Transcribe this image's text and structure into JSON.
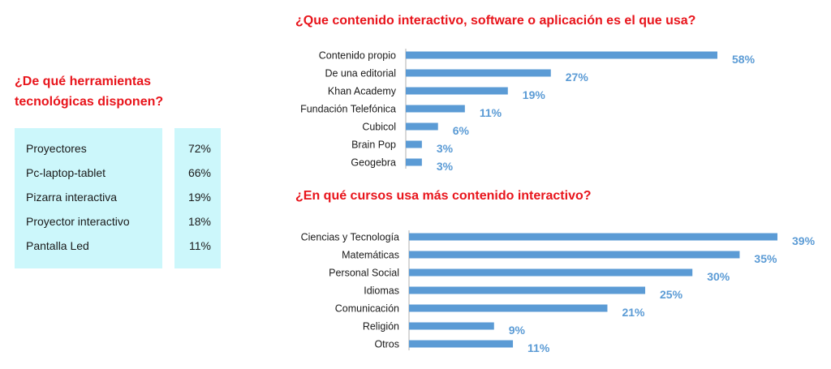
{
  "tools": {
    "title": "¿De qué herramientas tecnológicas disponen?",
    "items": [
      {
        "name": "Proyectores",
        "pct": "72%"
      },
      {
        "name": "Pc-laptop-tablet",
        "pct": "66%"
      },
      {
        "name": "Pizarra interactiva",
        "pct": "19%"
      },
      {
        "name": "Proyector interactivo",
        "pct": "18%"
      },
      {
        "name": "Pantalla Led",
        "pct": "11%"
      }
    ]
  },
  "colors": {
    "bar": "#5b9bd5",
    "title": "#e8141b",
    "table_bg": "#ccf7fb",
    "value_label": "#5b9bd5"
  },
  "chart_data": [
    {
      "type": "bar",
      "orientation": "horizontal",
      "title": "¿Que contenido interactivo, software o aplicación es el que usa?",
      "categories": [
        "Contenido propio",
        "De una editorial",
        "Khan Academy",
        "Fundación Telefónica",
        "Cubicol",
        "Brain Pop",
        "Geogebra"
      ],
      "values": [
        58,
        27,
        19,
        11,
        6,
        3,
        3
      ],
      "value_labels": [
        "58%",
        "27%",
        "19%",
        "11%",
        "6%",
        "3%",
        "3%"
      ],
      "xlim": [
        0,
        58
      ]
    },
    {
      "type": "bar",
      "orientation": "horizontal",
      "title": "¿En qué cursos usa más contenido interactivo?",
      "categories": [
        "Ciencias y Tecnología",
        "Matemáticas",
        "Personal Social",
        "Idiomas",
        "Comunicación",
        "Religión",
        "Otros"
      ],
      "values": [
        39,
        35,
        30,
        25,
        21,
        9,
        11
      ],
      "value_labels": [
        "39%",
        "35%",
        "30%",
        "25%",
        "21%",
        "9%",
        "11%"
      ],
      "xlim": [
        0,
        39
      ]
    }
  ]
}
